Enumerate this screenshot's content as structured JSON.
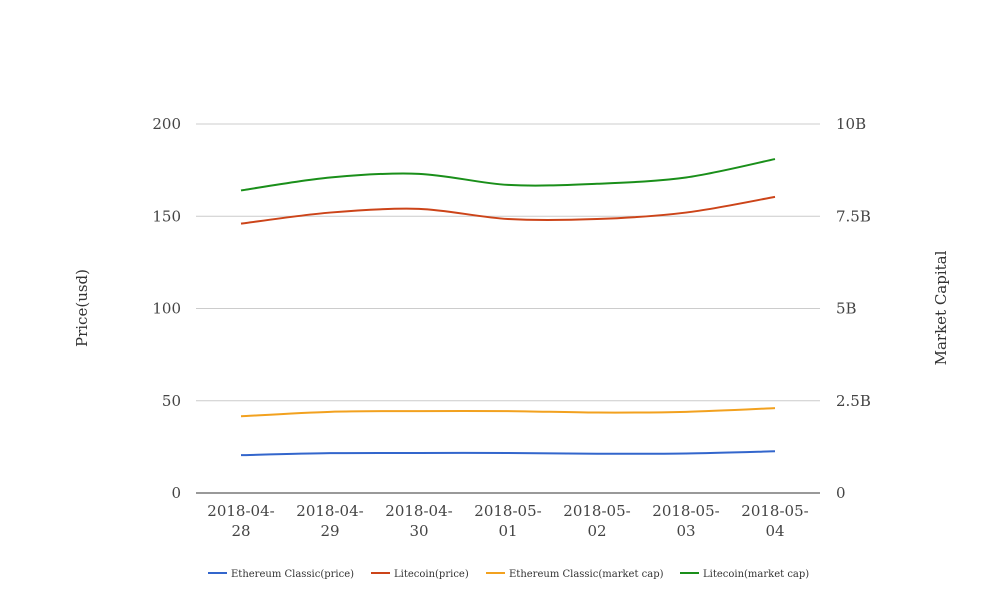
{
  "chart_data": {
    "type": "line",
    "title": "",
    "x_ticks": [
      [
        "2018-04-",
        "28"
      ],
      [
        "2018-04-",
        "29"
      ],
      [
        "2018-04-",
        "30"
      ],
      [
        "2018-05-",
        "01"
      ],
      [
        "2018-05-",
        "02"
      ],
      [
        "2018-05-",
        "03"
      ],
      [
        "2018-05-",
        "04"
      ]
    ],
    "categories": [
      "2018-04-28",
      "2018-04-29",
      "2018-04-30",
      "2018-05-01",
      "2018-05-02",
      "2018-05-03",
      "2018-05-04"
    ],
    "ylabel": "Price(usd)",
    "y2label": "Market Capital",
    "ylim": [
      0,
      200
    ],
    "y2lim": [
      0,
      10000000000
    ],
    "y_ticks": [
      "0",
      "50",
      "100",
      "150",
      "200"
    ],
    "y2_ticks": [
      "0",
      "2.5B",
      "5B",
      "7.5B",
      "10B"
    ],
    "y_tick_values": [
      0,
      50,
      100,
      150,
      200
    ],
    "grid": true,
    "legend_position": "bottom",
    "series": [
      {
        "name": "Ethereum Classic(price)",
        "axis": "left",
        "color": "#3366cc",
        "values": [
          20.5,
          21.6,
          21.7,
          21.7,
          21.3,
          21.4,
          22.6
        ]
      },
      {
        "name": "Litecoin(price)",
        "axis": "left",
        "color": "#cc4419",
        "values": [
          146,
          152,
          154,
          148.5,
          148.5,
          152,
          160.5
        ]
      },
      {
        "name": "Ethereum Classic(market cap)",
        "axis": "right",
        "color": "#f2a11f",
        "values": [
          2080000000,
          2200000000,
          2220000000,
          2220000000,
          2180000000,
          2200000000,
          2300000000
        ]
      },
      {
        "name": "Litecoin(market cap)",
        "axis": "right",
        "color": "#1a8f1a",
        "values": [
          8200000000,
          8550000000,
          8650000000,
          8350000000,
          8380000000,
          8550000000,
          9050000000
        ]
      }
    ]
  }
}
